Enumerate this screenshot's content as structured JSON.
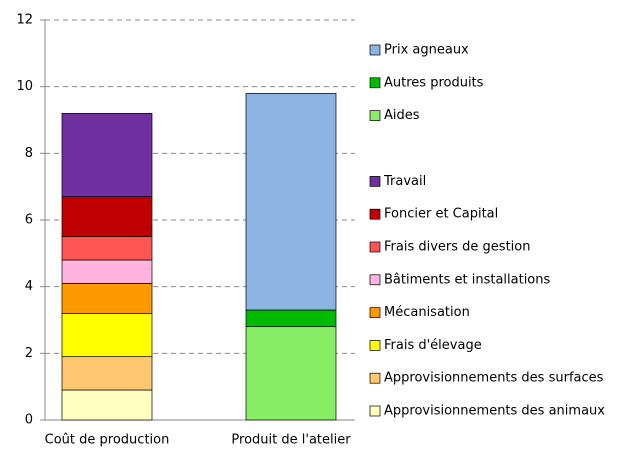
{
  "chart_data": {
    "type": "stacked_bar",
    "categories": [
      "Coût de production",
      "Produit de l'atelier"
    ],
    "series": [
      {
        "name": "Approvisionnements des animaux",
        "color": "#ffffc0",
        "values": [
          0.9,
          null
        ]
      },
      {
        "name": "Approvisionnements des surfaces",
        "color": "#ffc870",
        "values": [
          1.0,
          null
        ]
      },
      {
        "name": "Frais d'élevage",
        "color": "#ffff00",
        "values": [
          1.3,
          null
        ]
      },
      {
        "name": "Mécanisation",
        "color": "#ff9900",
        "values": [
          0.9,
          null
        ]
      },
      {
        "name": "Bâtiments et installations",
        "color": "#ffb3de",
        "values": [
          0.7,
          null
        ]
      },
      {
        "name": "Frais divers de gestion",
        "color": "#ff5555",
        "values": [
          0.7,
          null
        ]
      },
      {
        "name": "Foncier et Capital",
        "color": "#c00000",
        "values": [
          1.2,
          null
        ]
      },
      {
        "name": "Travail",
        "color": "#7030a0",
        "values": [
          2.5,
          null
        ]
      },
      {
        "name": "Aides",
        "color": "#88ee66",
        "values": [
          null,
          2.8
        ]
      },
      {
        "name": "Autres produits",
        "color": "#00bb00",
        "values": [
          null,
          0.5
        ]
      },
      {
        "name": "Prix agneaux",
        "color": "#8db3e2",
        "values": [
          null,
          6.5
        ]
      }
    ],
    "ylim": [
      0,
      12
    ],
    "yticks": [
      0,
      2,
      4,
      6,
      8,
      10,
      12
    ],
    "grid": true,
    "legend": "right"
  }
}
